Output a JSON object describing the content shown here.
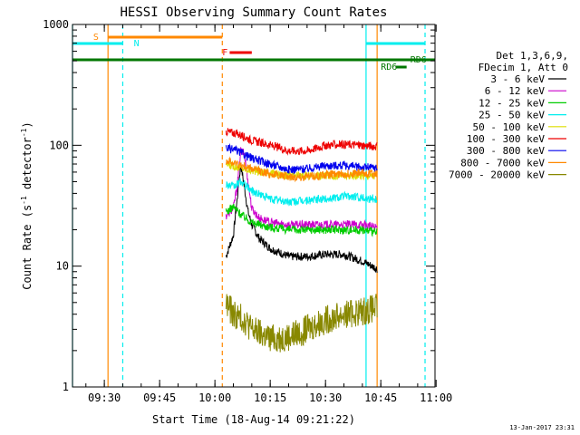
{
  "chart_data": {
    "type": "line",
    "title": "HESSI Observing Summary Count Rates",
    "xlabel": "Start Time (18-Aug-14 09:21:22)",
    "ylabel_main": "Count Rate (s",
    "ylabel_sup": "-1",
    "ylabel_mid": " detector",
    "ylabel_end": ")",
    "y_scale": "log",
    "ylim": [
      1,
      1000
    ],
    "xlim": [
      "09:21:22",
      "10:59:42"
    ],
    "x_ticks": [
      "09:30",
      "09:45",
      "10:00",
      "10:15",
      "10:30",
      "10:45",
      "11:00"
    ],
    "y_ticks": [
      "1",
      "10",
      "100",
      "1000"
    ],
    "grid": false,
    "legend_position": "right",
    "legend_header": [
      "Det 1,3,6,9,",
      "FDecim 1, Att 0"
    ],
    "series": [
      {
        "name": "3 - 6 keV",
        "color": "#000000",
        "start": "10:03",
        "end": "10:44",
        "points": [
          [
            "10:03",
            12
          ],
          [
            "10:05",
            18
          ],
          [
            "10:06",
            35
          ],
          [
            "10:07",
            70
          ],
          [
            "10:08",
            45
          ],
          [
            "10:09",
            28
          ],
          [
            "10:10",
            22
          ],
          [
            "10:12",
            17
          ],
          [
            "10:15",
            14
          ],
          [
            "10:20",
            12
          ],
          [
            "10:25",
            12
          ],
          [
            "10:30",
            12.5
          ],
          [
            "10:35",
            12.5
          ],
          [
            "10:40",
            11
          ],
          [
            "10:44",
            9.5
          ]
        ]
      },
      {
        "name": "6 - 12 keV",
        "color": "#cc00cc",
        "start": "10:03",
        "end": "10:44",
        "points": [
          [
            "10:03",
            26
          ],
          [
            "10:05",
            30
          ],
          [
            "10:06",
            45
          ],
          [
            "10:07",
            90
          ],
          [
            "10:08",
            85
          ],
          [
            "10:09",
            50
          ],
          [
            "10:10",
            30
          ],
          [
            "10:12",
            25
          ],
          [
            "10:15",
            23
          ],
          [
            "10:20",
            22
          ],
          [
            "10:30",
            22
          ],
          [
            "10:40",
            22
          ],
          [
            "10:44",
            21
          ]
        ]
      },
      {
        "name": "12 - 25 keV",
        "color": "#00cc00",
        "start": "10:03",
        "end": "10:44",
        "points": [
          [
            "10:03",
            28
          ],
          [
            "10:05",
            31
          ],
          [
            "10:07",
            27
          ],
          [
            "10:10",
            23
          ],
          [
            "10:15",
            21
          ],
          [
            "10:20",
            20
          ],
          [
            "10:30",
            20
          ],
          [
            "10:40",
            20
          ],
          [
            "10:44",
            19
          ]
        ]
      },
      {
        "name": "25 - 50 keV",
        "color": "#00eeee",
        "start": "10:03",
        "end": "10:44",
        "points": [
          [
            "10:03",
            48
          ],
          [
            "10:05",
            45
          ],
          [
            "10:07",
            50
          ],
          [
            "10:10",
            42
          ],
          [
            "10:15",
            36
          ],
          [
            "10:20",
            34
          ],
          [
            "10:30",
            36
          ],
          [
            "10:35",
            38
          ],
          [
            "10:40",
            37
          ],
          [
            "10:44",
            36
          ]
        ]
      },
      {
        "name": "50 - 100 keV",
        "color": "#dddd00",
        "start": "10:03",
        "end": "10:44",
        "points": [
          [
            "10:03",
            70
          ],
          [
            "10:10",
            62
          ],
          [
            "10:20",
            56
          ],
          [
            "10:30",
            56
          ],
          [
            "10:44",
            56
          ]
        ]
      },
      {
        "name": "100 - 300 keV",
        "color": "#ee0000",
        "start": "10:03",
        "end": "10:44",
        "points": [
          [
            "10:03",
            130
          ],
          [
            "10:06",
            125
          ],
          [
            "10:10",
            110
          ],
          [
            "10:15",
            100
          ],
          [
            "10:20",
            90
          ],
          [
            "10:25",
            90
          ],
          [
            "10:30",
            100
          ],
          [
            "10:35",
            102
          ],
          [
            "10:40",
            100
          ],
          [
            "10:44",
            98
          ]
        ]
      },
      {
        "name": "300 - 800 keV",
        "color": "#0000ee",
        "start": "10:03",
        "end": "10:44",
        "points": [
          [
            "10:03",
            95
          ],
          [
            "10:06",
            90
          ],
          [
            "10:10",
            78
          ],
          [
            "10:15",
            70
          ],
          [
            "10:20",
            63
          ],
          [
            "10:25",
            64
          ],
          [
            "10:30",
            68
          ],
          [
            "10:35",
            68
          ],
          [
            "10:40",
            66
          ],
          [
            "10:44",
            65
          ]
        ]
      },
      {
        "name": "800 - 7000 keV",
        "color": "#ff8800",
        "start": "10:03",
        "end": "10:44",
        "points": [
          [
            "10:03",
            75
          ],
          [
            "10:06",
            70
          ],
          [
            "10:10",
            64
          ],
          [
            "10:15",
            58
          ],
          [
            "10:20",
            55
          ],
          [
            "10:25",
            55
          ],
          [
            "10:30",
            57
          ],
          [
            "10:35",
            58
          ],
          [
            "10:40",
            59
          ],
          [
            "10:44",
            58
          ]
        ]
      },
      {
        "name": "7000 - 20000 keV",
        "color": "#888800",
        "start": "10:03",
        "end": "10:44",
        "points": [
          [
            "10:03",
            5
          ],
          [
            "10:05",
            4
          ],
          [
            "10:08",
            3.6
          ],
          [
            "10:10",
            3
          ],
          [
            "10:15",
            2.5
          ],
          [
            "10:20",
            2.6
          ],
          [
            "10:25",
            3.0
          ],
          [
            "10:30",
            3.6
          ],
          [
            "10:35",
            4.0
          ],
          [
            "10:40",
            4.2
          ],
          [
            "10:44",
            4.5
          ]
        ]
      }
    ],
    "flags": [
      {
        "label": "S",
        "color": "#ff8800",
        "start": "09:31",
        "end": "10:02"
      },
      {
        "label": "N",
        "color": "#00eeee",
        "start": "09:21:22",
        "end": "09:35"
      },
      {
        "label": "N",
        "color": "#00eeee",
        "start": "10:41",
        "end": "10:57"
      },
      {
        "label": "F",
        "color": "#ee0000",
        "start": "10:04",
        "end": "10:10"
      },
      {
        "label": "RD6",
        "color": "#007700",
        "start": "09:21:22",
        "end": "10:59:42"
      },
      {
        "label": "RD6",
        "color": "#007700",
        "start": "10:49",
        "end": "10:52"
      },
      {
        "label": "RD6",
        "color": "#007700",
        "start": "10:55",
        "end": "10:57"
      }
    ],
    "vertical_lines": [
      {
        "time": "09:21:22",
        "color": "#00eeee",
        "style": "solid"
      },
      {
        "time": "09:31",
        "color": "#ff8800",
        "style": "solid"
      },
      {
        "time": "09:35",
        "color": "#00eeee",
        "style": "dashed"
      },
      {
        "time": "10:02",
        "color": "#ff8800",
        "style": "dashed"
      },
      {
        "time": "10:41",
        "color": "#00eeee",
        "style": "solid"
      },
      {
        "time": "10:44",
        "color": "#ff8800",
        "style": "solid"
      },
      {
        "time": "10:57",
        "color": "#00eeee",
        "style": "dashed"
      }
    ]
  },
  "timestamp": "13-Jan-2017 23:31"
}
